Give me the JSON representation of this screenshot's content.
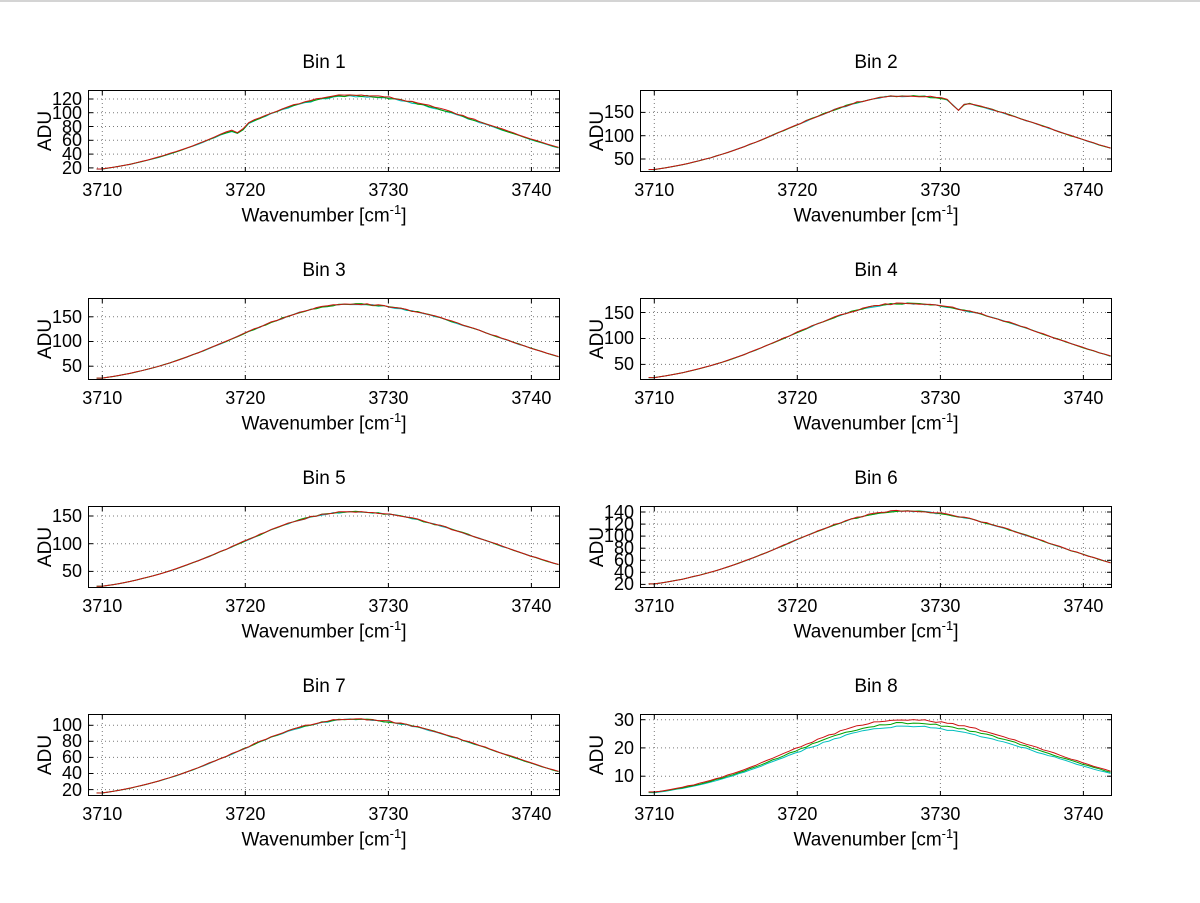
{
  "figure": {
    "background": "#ffffff",
    "top_border": "#d4d4d4"
  },
  "labels": {
    "ylabel": "ADU",
    "xlabel_parts": {
      "pre": "Wavenumber [cm",
      "sup": "-1",
      "post": "]"
    }
  },
  "chart_data": {
    "type": "line",
    "layout": "4 rows x 2 columns of subplots, dotted grid on, black axes box",
    "xlim": [
      3709,
      3742
    ],
    "x_ticks": [
      3710,
      3720,
      3730,
      3740
    ],
    "x_profile_start": 3710,
    "x_profile_step": 1,
    "profile_normalized": [
      0.092,
      0.119,
      0.153,
      0.194,
      0.241,
      0.295,
      0.356,
      0.423,
      0.494,
      0.569,
      0.645,
      0.719,
      0.79,
      0.854,
      0.909,
      0.952,
      0.983,
      0.998,
      0.999,
      0.989,
      0.969,
      0.941,
      0.904,
      0.86,
      0.81,
      0.755,
      0.697,
      0.637,
      0.576,
      0.516,
      0.458,
      0.402,
      0.35
    ],
    "value_model": "ADU = peak*(0.06+0.94*profile) + series_offset*profile + small noise; spike = narrow downward dip",
    "series_colors": {
      "cyan": "#00bfbf",
      "green": "#00a000",
      "red": "#cc1111"
    },
    "charts": [
      {
        "title": "Bin 1",
        "peak": 126,
        "ylim": [
          14,
          133
        ],
        "y_ticks": [
          20,
          40,
          60,
          80,
          100,
          120
        ],
        "series": [
          {
            "name": "cyan",
            "offset": -2.0
          },
          {
            "name": "green",
            "offset": -1.2
          },
          {
            "name": "red",
            "offset": 0
          }
        ],
        "spike": {
          "x": 3719.6,
          "depth": 9
        },
        "seed": 11
      },
      {
        "title": "Bin 2",
        "peak": 186,
        "ylim": [
          22,
          198
        ],
        "y_ticks": [
          50,
          100,
          150
        ],
        "series": [
          {
            "name": "cyan",
            "offset": -0.6
          },
          {
            "name": "green",
            "offset": -0.3
          },
          {
            "name": "red",
            "offset": 0
          }
        ],
        "spike": {
          "x": 3731.2,
          "depth": 20
        },
        "seed": 22
      },
      {
        "title": "Bin 3",
        "peak": 176,
        "ylim": [
          22,
          188
        ],
        "y_ticks": [
          50,
          100,
          150
        ],
        "series": [
          {
            "name": "cyan",
            "offset": -0.6
          },
          {
            "name": "green",
            "offset": -0.3
          },
          {
            "name": "red",
            "offset": 0
          }
        ],
        "spike": null,
        "seed": 33
      },
      {
        "title": "Bin 4",
        "peak": 168,
        "ylim": [
          20,
          178
        ],
        "y_ticks": [
          50,
          100,
          150
        ],
        "series": [
          {
            "name": "cyan",
            "offset": -0.6
          },
          {
            "name": "green",
            "offset": -0.3
          },
          {
            "name": "red",
            "offset": 0
          }
        ],
        "spike": null,
        "seed": 44
      },
      {
        "title": "Bin 5",
        "peak": 158,
        "ylim": [
          20,
          168
        ],
        "y_ticks": [
          50,
          100,
          150
        ],
        "series": [
          {
            "name": "cyan",
            "offset": -0.6
          },
          {
            "name": "green",
            "offset": -0.3
          },
          {
            "name": "red",
            "offset": 0
          }
        ],
        "spike": null,
        "seed": 55
      },
      {
        "title": "Bin 6",
        "peak": 142,
        "ylim": [
          14,
          150
        ],
        "y_ticks": [
          20,
          40,
          60,
          80,
          100,
          120,
          140
        ],
        "series": [
          {
            "name": "cyan",
            "offset": -0.6
          },
          {
            "name": "green",
            "offset": -0.3
          },
          {
            "name": "red",
            "offset": 0
          }
        ],
        "spike": null,
        "seed": 66
      },
      {
        "title": "Bin 7",
        "peak": 108,
        "ylim": [
          12,
          114
        ],
        "y_ticks": [
          20,
          40,
          60,
          80,
          100
        ],
        "series": [
          {
            "name": "cyan",
            "offset": -0.8
          },
          {
            "name": "green",
            "offset": -0.4
          },
          {
            "name": "red",
            "offset": 0
          }
        ],
        "spike": null,
        "seed": 77
      },
      {
        "title": "Bin 8",
        "peak": 30,
        "ylim": [
          3,
          32
        ],
        "y_ticks": [
          10,
          20,
          30
        ],
        "series": [
          {
            "name": "cyan",
            "offset": -2.4
          },
          {
            "name": "green",
            "offset": -1.2
          },
          {
            "name": "red",
            "offset": 0
          }
        ],
        "spike": null,
        "seed": 88
      }
    ]
  }
}
